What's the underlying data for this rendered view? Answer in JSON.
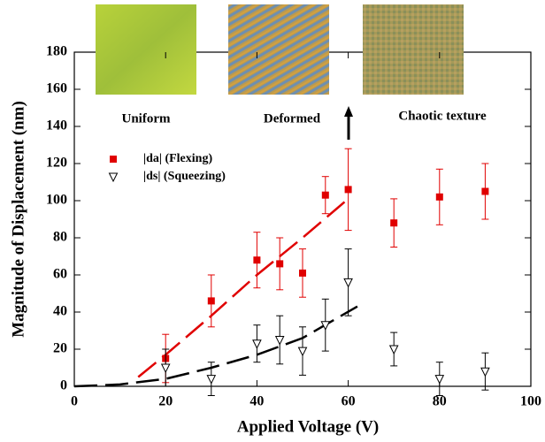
{
  "chart_data": {
    "type": "scatter",
    "xlabel": "Applied Voltage (V)",
    "ylabel": "Magnitude of Displacement (nm)",
    "xlim": [
      0,
      100
    ],
    "xticks": [
      0,
      20,
      40,
      60,
      80,
      100
    ],
    "ylim": [
      0,
      180
    ],
    "yticks": [
      0,
      20,
      40,
      60,
      80,
      100,
      120,
      140,
      160,
      180
    ],
    "annotations": [
      "Uniform",
      "Deformed",
      "Chaotic texture"
    ],
    "series": [
      {
        "name": "|da| (Flexing)",
        "color": "#e00000",
        "marker": "square",
        "x": [
          20,
          30,
          40,
          45,
          50,
          55,
          60,
          70,
          80,
          90
        ],
        "values": [
          15,
          46,
          68,
          66,
          61,
          103,
          106,
          88,
          102,
          105
        ],
        "errors": [
          13,
          14,
          15,
          14,
          13,
          10,
          22,
          13,
          15,
          15
        ]
      },
      {
        "name": "|ds| (Squeezing)",
        "color": "#000000",
        "marker": "triangle-down",
        "x": [
          20,
          30,
          40,
          45,
          50,
          55,
          60,
          70,
          80,
          90
        ],
        "values": [
          10,
          4,
          23,
          25,
          19,
          33,
          56,
          20,
          4,
          8
        ],
        "errors": [
          10,
          9,
          10,
          13,
          13,
          14,
          18,
          9,
          9,
          10
        ]
      }
    ],
    "fits": [
      {
        "color": "#e00000",
        "x": [
          14,
          20,
          30,
          40,
          50,
          60
        ],
        "values": [
          5,
          17,
          38,
          60,
          80,
          101
        ]
      },
      {
        "color": "#000000",
        "x": [
          0,
          10,
          20,
          30,
          40,
          50,
          62
        ],
        "values": [
          0,
          1,
          4,
          10,
          17,
          26,
          43
        ]
      }
    ]
  }
}
